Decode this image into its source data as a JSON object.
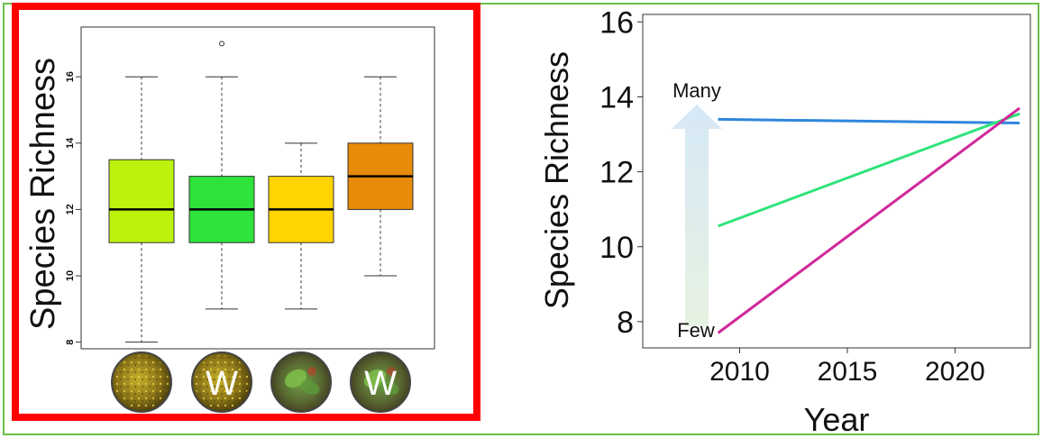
{
  "colors": {
    "frame": "#6cbf4a",
    "highlight_box": "#ff0000",
    "arrow_top": "#d6e8f7",
    "arrow_bottom": "#e6f2e1"
  },
  "chart_data": [
    {
      "type": "box",
      "ylabel": "Species Richness",
      "ylim": [
        7.8,
        17.5
      ],
      "yticks": [
        8,
        10,
        12,
        14,
        16
      ],
      "ytick_labels": [
        "8",
        "10",
        "12",
        "14",
        "16"
      ],
      "grid": false,
      "categories": [
        {
          "label": "",
          "icon": "moss-photo-icon",
          "color": "#bdf20c",
          "min": 8,
          "q1": 11,
          "median": 12,
          "q3": 13.5,
          "max": 16,
          "outliers": []
        },
        {
          "label": "W",
          "icon": "moss-photo-icon",
          "color": "#2ee33a",
          "min": 9,
          "q1": 11,
          "median": 12,
          "q3": 13,
          "max": 16,
          "outliers": [
            17
          ]
        },
        {
          "label": "",
          "icon": "leafy-plant-photo-icon",
          "color": "#ffd400",
          "min": 9,
          "q1": 11,
          "median": 12,
          "q3": 13,
          "max": 14,
          "outliers": []
        },
        {
          "label": "W",
          "icon": "leafy-plant-photo-icon",
          "color": "#e88a0a",
          "min": 10,
          "q1": 12,
          "median": 13,
          "q3": 14,
          "max": 16,
          "outliers": []
        }
      ]
    },
    {
      "type": "line",
      "ylabel": "Species Richness",
      "xlabel": "Year",
      "xlim": [
        2005.5,
        2023.5
      ],
      "ylim": [
        7.3,
        16.2
      ],
      "xticks": [
        2010,
        2015,
        2020
      ],
      "xtick_labels": [
        "2010",
        "2015",
        "2020"
      ],
      "yticks": [
        8,
        10,
        12,
        14,
        16
      ],
      "ytick_labels": [
        "8",
        "10",
        "12",
        "14",
        "16"
      ],
      "grid": false,
      "annotations": {
        "top": "Many",
        "bottom": "Few"
      },
      "series": [
        {
          "color": "#2e86de",
          "x": [
            2009,
            2023
          ],
          "y": [
            13.4,
            13.3
          ]
        },
        {
          "color": "#2ee37a",
          "x": [
            2009,
            2023
          ],
          "y": [
            10.55,
            13.55
          ]
        },
        {
          "color": "#d0289a",
          "x": [
            2009,
            2023
          ],
          "y": [
            7.7,
            13.7
          ]
        }
      ]
    }
  ]
}
